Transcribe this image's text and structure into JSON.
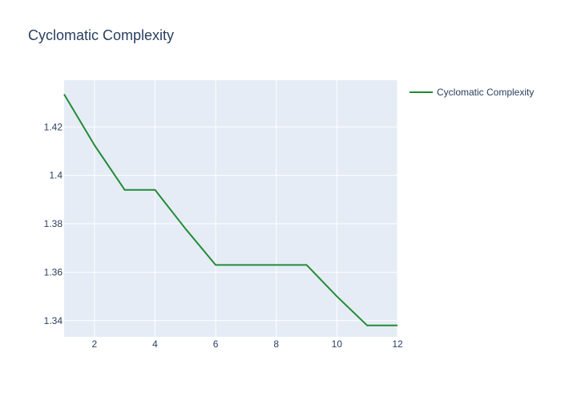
{
  "chart_data": {
    "type": "line",
    "title": "Cyclomatic Complexity",
    "xlabel": "",
    "ylabel": "",
    "x": [
      1,
      2,
      3,
      4,
      5,
      6,
      7,
      8,
      9,
      10,
      11,
      12
    ],
    "series": [
      {
        "name": "Cyclomatic Complexity",
        "color": "#228b34",
        "values": [
          1.4335,
          1.4125,
          1.394,
          1.394,
          1.378,
          1.363,
          1.363,
          1.363,
          1.363,
          1.35,
          1.338,
          1.338
        ]
      }
    ],
    "xlim": [
      1,
      12
    ],
    "ylim": [
      1.3333,
      1.4393
    ],
    "x_ticks": [
      2,
      4,
      6,
      8,
      10,
      12
    ],
    "x_tick_labels": [
      "2",
      "4",
      "6",
      "8",
      "10",
      "12"
    ],
    "y_ticks": [
      1.34,
      1.36,
      1.38,
      1.4,
      1.42
    ],
    "y_tick_labels": [
      "1.34",
      "1.36",
      "1.38",
      "1.4",
      "1.42"
    ],
    "grid": true,
    "legend_position": "top-right",
    "plot_background": "#e5ecf6",
    "grid_color": "#ffffff",
    "text_color": "#2a3f5f"
  }
}
